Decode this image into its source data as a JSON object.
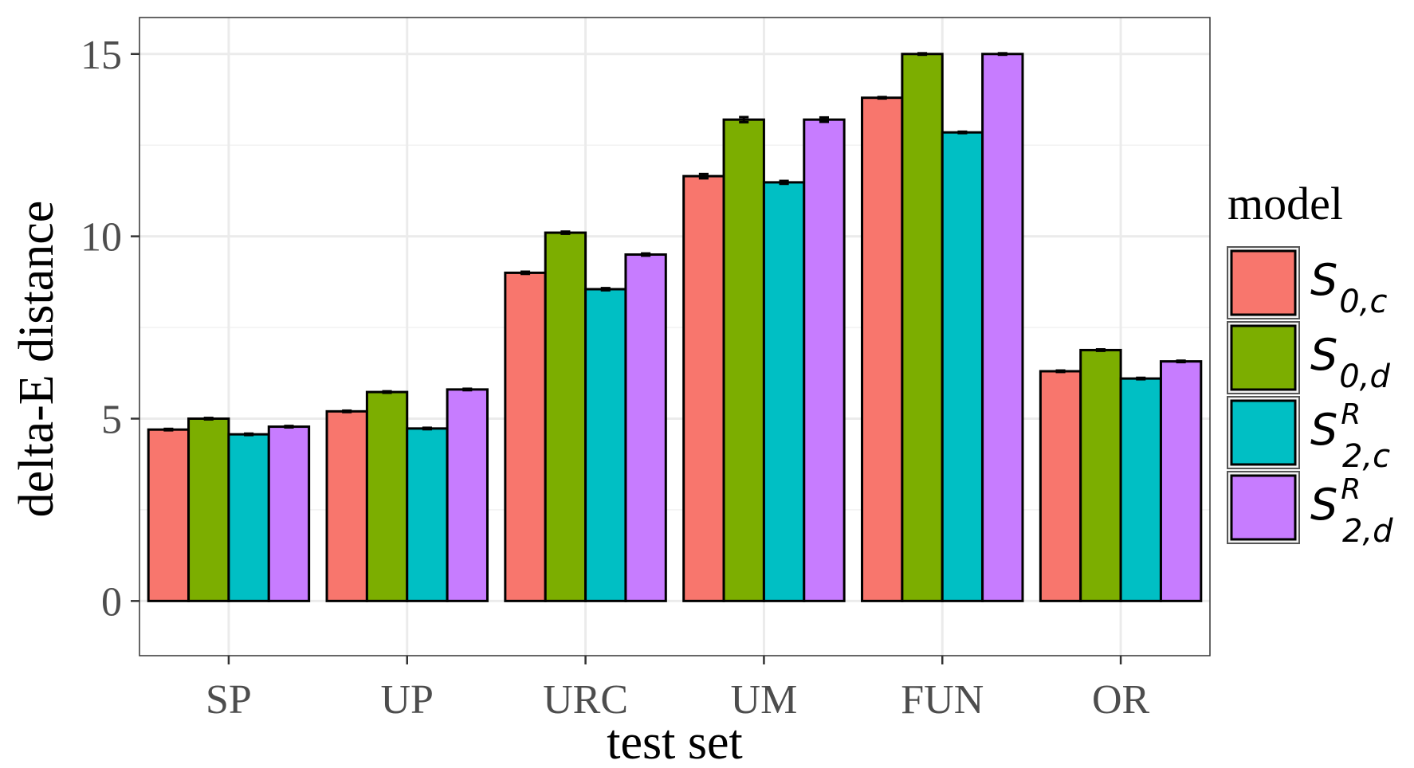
{
  "chart_data": {
    "type": "bar",
    "xlabel": "test set",
    "ylabel": "delta-E distance",
    "ylim": [
      -1.5,
      16
    ],
    "y_ticks": [
      0,
      5,
      10,
      15
    ],
    "grid": true,
    "legend_title": "model",
    "legend_position": "right",
    "categories": [
      "SP",
      "UP",
      "URC",
      "UM",
      "FUN",
      "OR"
    ],
    "series": [
      {
        "name": "S_{0,c}",
        "label": {
          "base": "S",
          "sub": "0,c",
          "sup": ""
        },
        "color": "#F8766D",
        "values": [
          4.7,
          5.2,
          9.0,
          11.65,
          13.8,
          6.3
        ],
        "errors": [
          0.02,
          0.02,
          0.03,
          0.06,
          0.02,
          0.02
        ]
      },
      {
        "name": "S_{0,d}",
        "label": {
          "base": "S",
          "sub": "0,d",
          "sup": ""
        },
        "color": "#7CAE00",
        "values": [
          5.0,
          5.73,
          10.1,
          13.2,
          15.0,
          6.88
        ],
        "errors": [
          0.02,
          0.02,
          0.03,
          0.07,
          0.02,
          0.02
        ]
      },
      {
        "name": "S_{2,c}^R",
        "label": {
          "base": "S",
          "sub": "2,c",
          "sup": "R"
        },
        "color": "#00BFC4",
        "values": [
          4.57,
          4.73,
          8.55,
          11.48,
          12.85,
          6.1
        ],
        "errors": [
          0.02,
          0.02,
          0.03,
          0.04,
          0.02,
          0.02
        ]
      },
      {
        "name": "S_{2,d}^R",
        "label": {
          "base": "S",
          "sub": "2,d",
          "sup": "R"
        },
        "color": "#C77CFF",
        "values": [
          4.78,
          5.8,
          9.5,
          13.2,
          15.0,
          6.57
        ],
        "errors": [
          0.02,
          0.02,
          0.03,
          0.06,
          0.02,
          0.02
        ]
      }
    ]
  }
}
